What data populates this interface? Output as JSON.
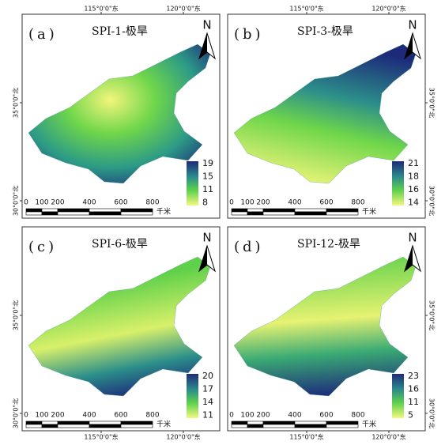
{
  "panels": [
    {
      "label": "(a)",
      "title": "SPI-1-极旱",
      "north": "N",
      "legend": [
        19,
        15,
        11,
        8
      ],
      "scale": [
        "0",
        "100",
        "200",
        "400",
        "600",
        "800",
        "千米"
      ],
      "lon": [
        "115°0'0\"东",
        "120°0'0\"东"
      ],
      "lat": [
        "35°0'0\"北",
        "30°0'0\"北"
      ]
    },
    {
      "label": "(b)",
      "title": "SPI-3-极旱",
      "north": "N",
      "legend": [
        21,
        18,
        16,
        14
      ],
      "scale": [
        "0",
        "100",
        "200",
        "400",
        "600",
        "800",
        "千米"
      ],
      "lon": [
        "115°0'0\"东",
        "120°0'0\"东"
      ],
      "lat": [
        "35°0'0\"北",
        "30°0'0\"北"
      ]
    },
    {
      "label": "(c)",
      "title": "SPI-6-极旱",
      "north": "N",
      "legend": [
        20,
        17,
        14,
        11
      ],
      "scale": [
        "0",
        "100",
        "200",
        "400",
        "600",
        "800",
        "千米"
      ],
      "lon": [
        "115°0'0\"东",
        "120°0'0\"东"
      ],
      "lat": [
        "35°0'0\"北",
        "30°0'0\"北"
      ]
    },
    {
      "label": "(d)",
      "title": "SPI-12-极旱",
      "north": "N",
      "legend": [
        23,
        16,
        11,
        5
      ],
      "scale": [
        "0",
        "100",
        "200",
        "400",
        "600",
        "800",
        "千米"
      ],
      "lon": [
        "115°0'0\"东",
        "120°0'0\"东"
      ],
      "lat": [
        "35°0'0\"北",
        "30°0'0\"北"
      ]
    }
  ]
}
